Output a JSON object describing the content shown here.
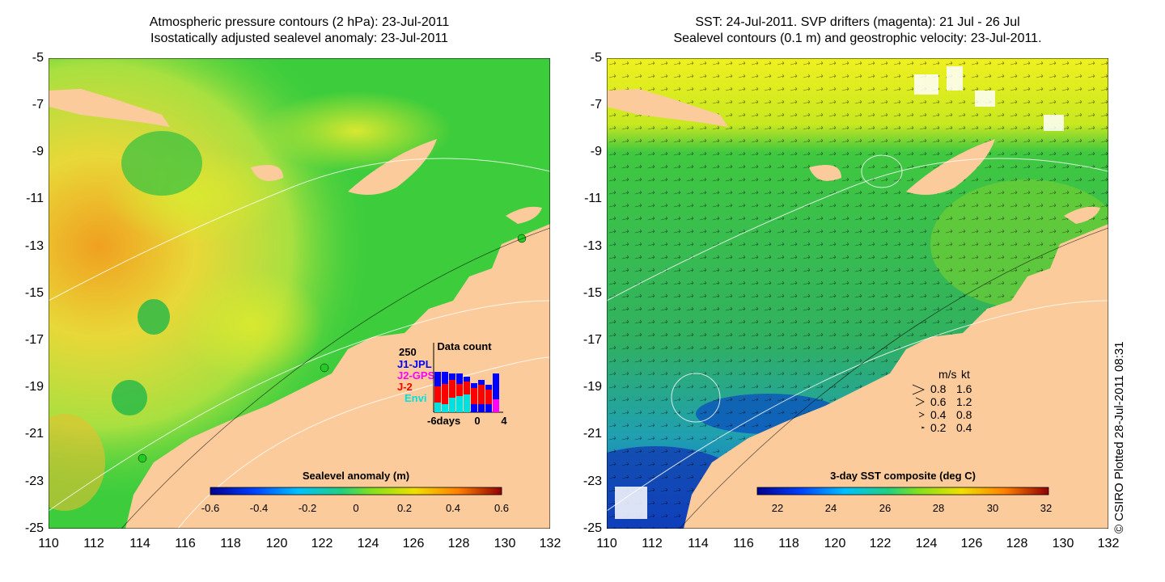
{
  "colors": {
    "land": "#fccb9c",
    "sea_green": "#22cc22"
  },
  "left_panel": {
    "title_line1": "Atmospheric pressure contours (2 hPa): 23-Jul-2011",
    "title_line2": "Isostatically adjusted sealevel anomaly: 23-Jul-2011",
    "colorbar_label": "Sealevel anomaly (m)",
    "colorbar_ticks": [
      "-0.6",
      "-0.4",
      "-0.2",
      "0",
      "0.2",
      "0.4",
      "0.6"
    ],
    "data_count": {
      "title": "Data count",
      "ymax": "250",
      "legend": [
        {
          "label": "J1-JPL",
          "color": "#0000ff"
        },
        {
          "label": "J2-GPS",
          "color": "#ff00ff"
        },
        {
          "label": "J-2",
          "color": "#ff0000"
        },
        {
          "label": "Envi",
          "color": "#00e0e0"
        }
      ],
      "xlabel_left": "-6days",
      "xlabel_mid": "0",
      "xlabel_right": "4"
    }
  },
  "right_panel": {
    "title_line1": "SST: 24-Jul-2011. SVP drifters (magenta): 21 Jul - 26 Jul",
    "title_line2": "Sealevel contours (0.1 m) and geostrophic velocity: 23-Jul-2011.",
    "colorbar_label": "3-day SST composite (deg C)",
    "colorbar_ticks": [
      "22",
      "24",
      "26",
      "28",
      "30",
      "32"
    ],
    "velocity_key": {
      "header_ms": "m/s",
      "header_kt": "kt",
      "rows": [
        {
          "ms": "0.8",
          "kt": "1.6"
        },
        {
          "ms": "0.6",
          "kt": "1.2"
        },
        {
          "ms": "0.4",
          "kt": "0.8"
        },
        {
          "ms": "0.2",
          "kt": "0.4"
        }
      ]
    }
  },
  "y_ticks": [
    "-5",
    "-7",
    "-9",
    "-11",
    "-13",
    "-15",
    "-17",
    "-19",
    "-21",
    "-23",
    "-25"
  ],
  "x_ticks": [
    "110",
    "112",
    "114",
    "116",
    "118",
    "120",
    "122",
    "124",
    "126",
    "128",
    "130",
    "132"
  ],
  "credit": "© CSIRO Plotted 28-Jul-2011 08:31"
}
